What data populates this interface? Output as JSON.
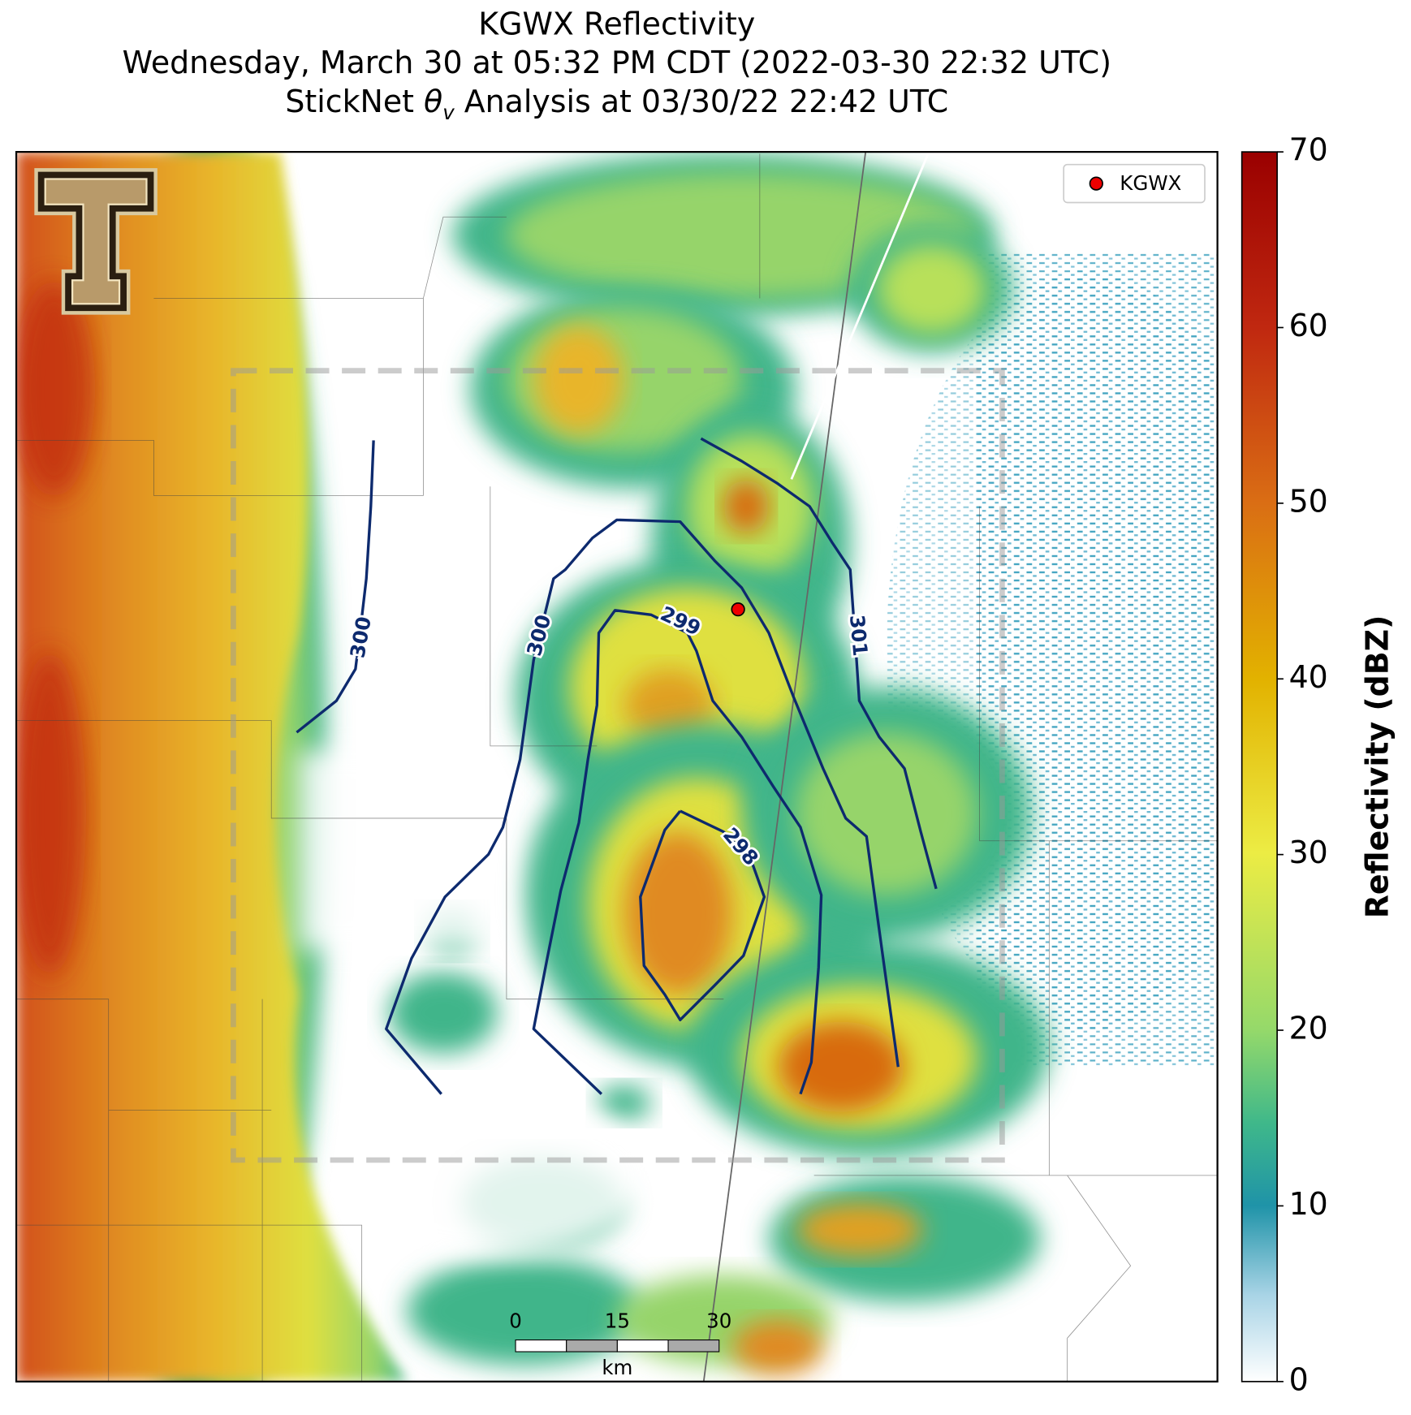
{
  "title": {
    "line1": "KGWX Reflectivity",
    "line2": "Wednesday, March 30 at 05:32 PM CDT (2022-03-30 22:32 UTC)",
    "line3": {
      "before": "StickNet ",
      "symbol": "θ",
      "subscript": "v",
      "after": " Analysis at 03/30/22 22:42 UTC"
    }
  },
  "legend": {
    "label": "KGWX"
  },
  "colorbar": {
    "label": "Reflectivity (dBZ)",
    "lim": [
      0,
      70
    ],
    "ticks": [
      0,
      10,
      20,
      30,
      40,
      50,
      60,
      70
    ]
  },
  "contours": [
    {
      "value": 300
    },
    {
      "value": 300
    },
    {
      "value": 299
    },
    {
      "value": 301
    },
    {
      "value": 298
    }
  ],
  "scale_bar": {
    "ticks": [
      0,
      15,
      30
    ],
    "unit": "km"
  }
}
